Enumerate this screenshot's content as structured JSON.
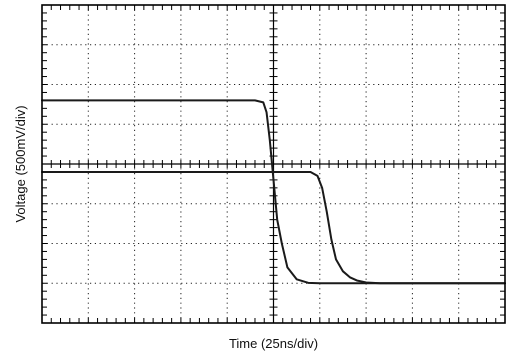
{
  "chart_data": {
    "type": "line",
    "xlabel": "Time (25ns/div)",
    "ylabel": "Voltage (500mV/div)",
    "xlim": [
      0,
      10
    ],
    "ylim": [
      0,
      8
    ],
    "grid": true,
    "grid_divisions": {
      "x": 10,
      "y": 8
    },
    "minor_ticks_per_division": 5,
    "line_color": "#1a1a1a",
    "series": [
      {
        "x": [
          0,
          4.6,
          4.78,
          4.85,
          4.92,
          5.0,
          5.08,
          5.18,
          5.3,
          5.5,
          5.75,
          6.0,
          7.0,
          10
        ],
        "y": [
          5.6,
          5.6,
          5.55,
          5.3,
          4.6,
          3.6,
          2.6,
          2.0,
          1.4,
          1.1,
          1.01,
          1.0,
          1.0,
          1.0
        ]
      },
      {
        "x": [
          0,
          5.8,
          5.95,
          6.05,
          6.15,
          6.25,
          6.35,
          6.5,
          6.65,
          6.8,
          7.0,
          7.3,
          10
        ],
        "y": [
          3.8,
          3.8,
          3.7,
          3.4,
          2.8,
          2.1,
          1.6,
          1.3,
          1.15,
          1.07,
          1.02,
          1.0,
          1.0
        ]
      }
    ]
  }
}
